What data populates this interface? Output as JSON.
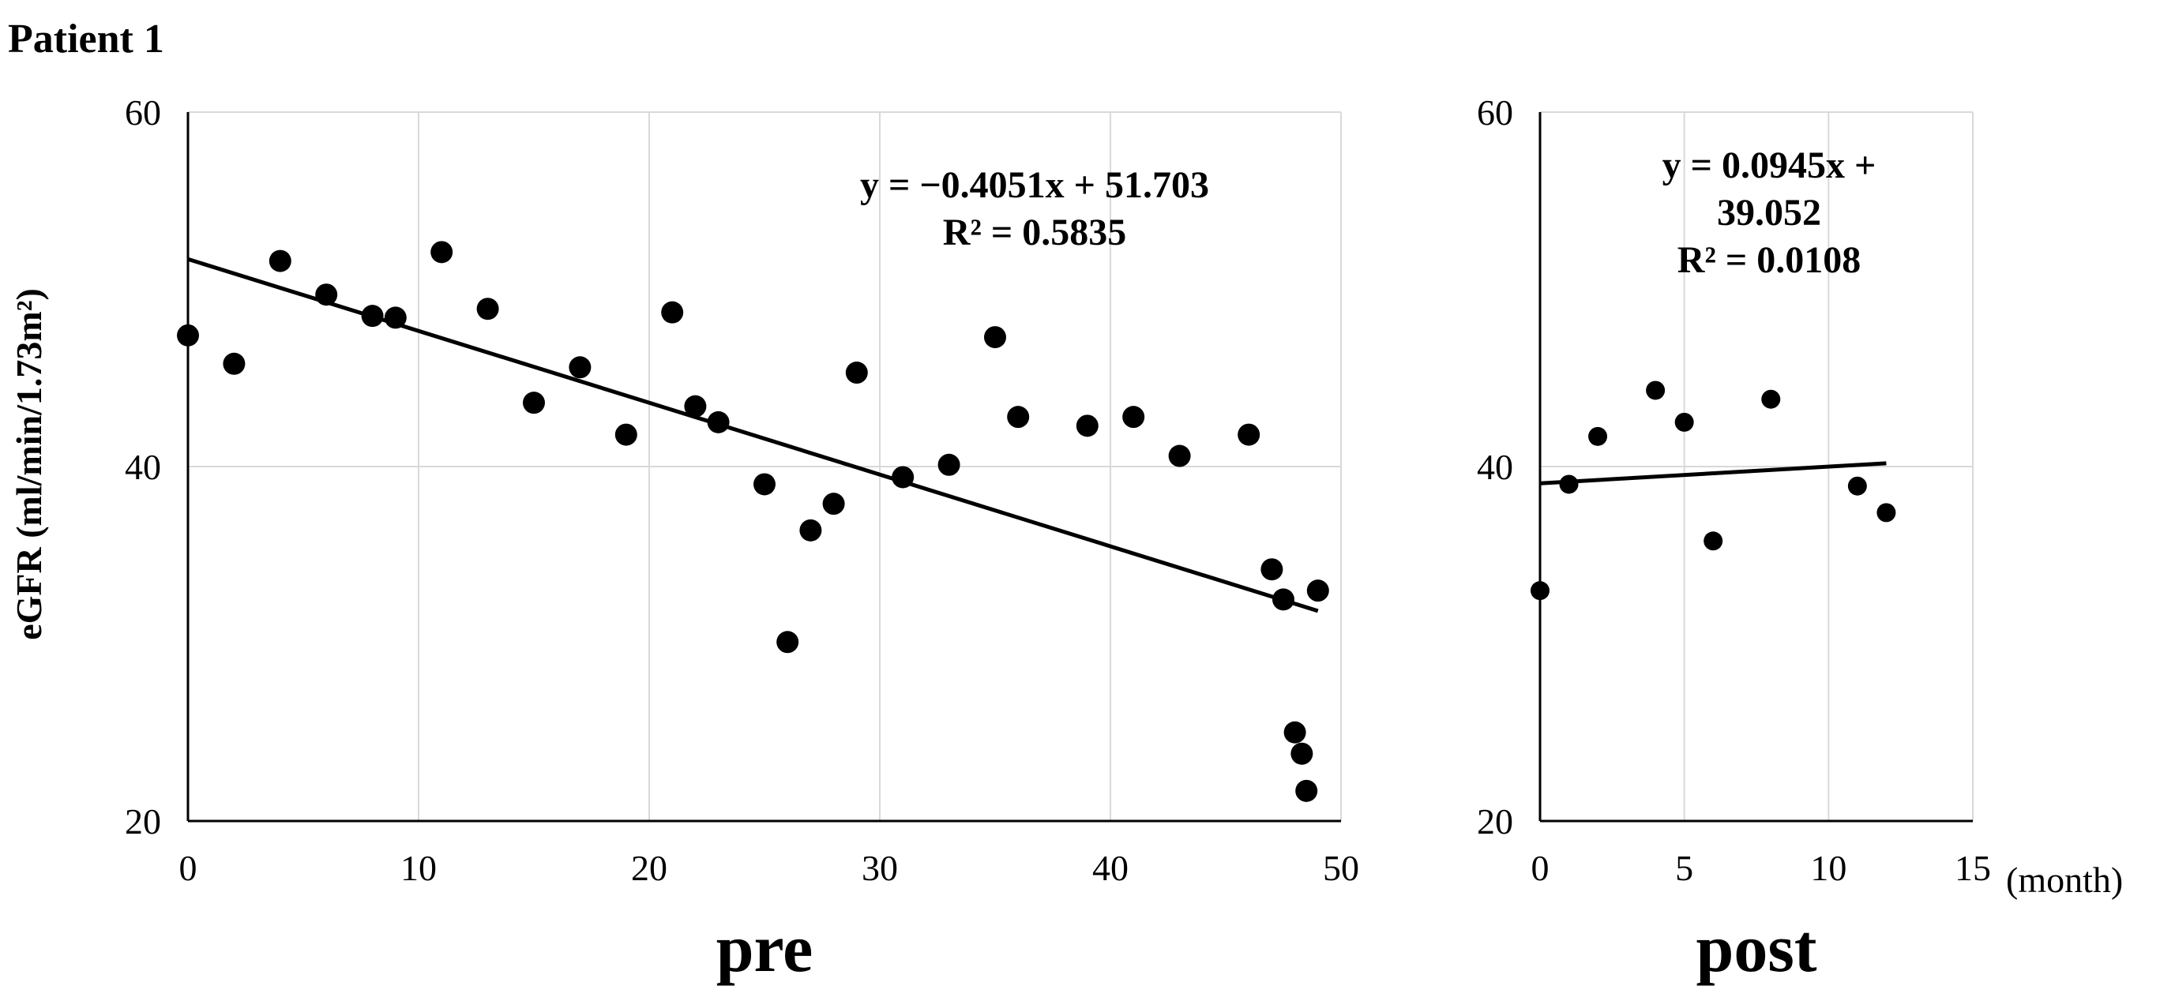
{
  "page_title": "Patient 1",
  "unit_note": "(month)",
  "ylabel": "eGFR (ml/min/1.73m²)",
  "chart_data": [
    {
      "type": "scatter",
      "xlabel": "pre",
      "xlim": [
        0,
        50
      ],
      "ylim": [
        20,
        60
      ],
      "xticks": [
        0,
        10,
        20,
        30,
        40,
        50
      ],
      "yticks": [
        20,
        40,
        60
      ],
      "grid": true,
      "trendline": {
        "slope": -0.4051,
        "intercept": 51.703,
        "x_range": [
          0,
          49
        ]
      },
      "equation_lines": [
        "y = −0.4051x + 51.703",
        "R² = 0.5835"
      ],
      "x": [
        0,
        2,
        4,
        6,
        8,
        9,
        11,
        13,
        15,
        17,
        19,
        21,
        22,
        23,
        25,
        26,
        27,
        28,
        29,
        31,
        33,
        35,
        36,
        39,
        41,
        43,
        46,
        47,
        47.5,
        48,
        48.3,
        48.5,
        49
      ],
      "y": [
        47.4,
        45.8,
        51.6,
        49.7,
        48.5,
        48.4,
        52.1,
        48.9,
        43.6,
        45.6,
        41.8,
        48.7,
        43.4,
        42.5,
        39.0,
        30.1,
        36.4,
        37.9,
        45.3,
        39.4,
        40.1,
        47.3,
        42.8,
        42.3,
        42.8,
        40.6,
        41.8,
        34.2,
        32.5,
        25.0,
        23.8,
        21.7,
        33.0
      ]
    },
    {
      "type": "scatter",
      "xlabel": "post",
      "xlim": [
        0,
        15
      ],
      "ylim": [
        20,
        60
      ],
      "xticks": [
        0,
        5,
        10,
        15
      ],
      "yticks": [
        20,
        40,
        60
      ],
      "grid": true,
      "trendline": {
        "slope": 0.0945,
        "intercept": 39.052,
        "x_range": [
          0,
          12
        ]
      },
      "equation_lines": [
        "y = 0.0945x +",
        "39.052",
        "R² = 0.0108"
      ],
      "x": [
        0,
        1,
        2,
        4,
        5,
        6,
        8,
        11,
        12
      ],
      "y": [
        33.0,
        39.0,
        41.7,
        44.3,
        42.5,
        35.8,
        43.8,
        38.9,
        37.4
      ]
    }
  ]
}
